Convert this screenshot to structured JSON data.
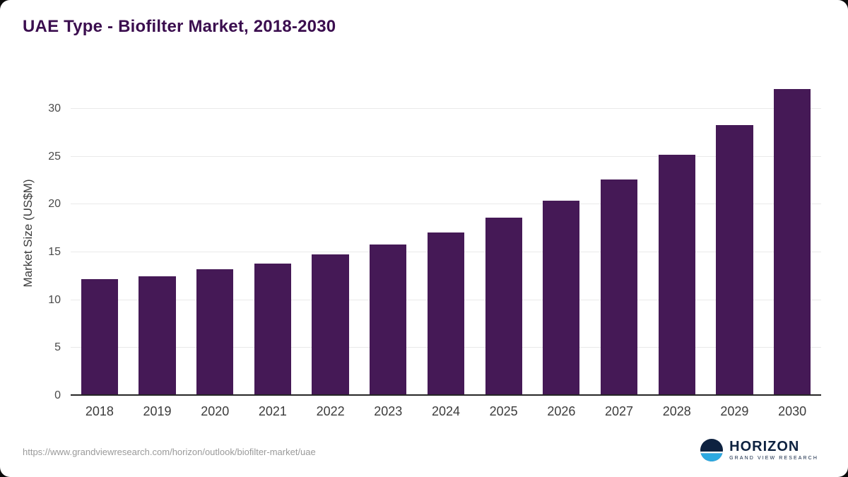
{
  "page": {
    "title": "UAE Type - Biofilter Market, 2018-2030"
  },
  "chart_data": {
    "type": "bar",
    "title": "UAE Type - Biofilter Market, 2018-2030",
    "categories": [
      "2018",
      "2019",
      "2020",
      "2021",
      "2022",
      "2023",
      "2024",
      "2025",
      "2026",
      "2027",
      "2028",
      "2029",
      "2030"
    ],
    "values": [
      12.2,
      12.5,
      13.2,
      13.8,
      14.8,
      15.8,
      17.1,
      18.6,
      20.4,
      22.6,
      25.2,
      28.3,
      32.1
    ],
    "xlabel": "",
    "ylabel": "Market Size (US$M)",
    "ylim": [
      0,
      34
    ],
    "yticks": [
      0,
      5,
      10,
      15,
      20,
      25,
      30
    ],
    "grid": true,
    "legend": false,
    "bar_color": "#451956"
  },
  "footer": {
    "source_url": "https://www.grandviewresearch.com/horizon/outlook/biofilter-market/uae",
    "brand_name": "HORIZON",
    "brand_subtitle": "GRAND VIEW RESEARCH"
  },
  "colors": {
    "title": "#3b0e4f",
    "bar": "#451956",
    "axis_text": "#3c3c3c",
    "grid": "#e9e9e9",
    "axis_line": "#262626",
    "url_text": "#9a9a9a",
    "brand_navy": "#0e2240",
    "brand_blue": "#2da9e1"
  }
}
